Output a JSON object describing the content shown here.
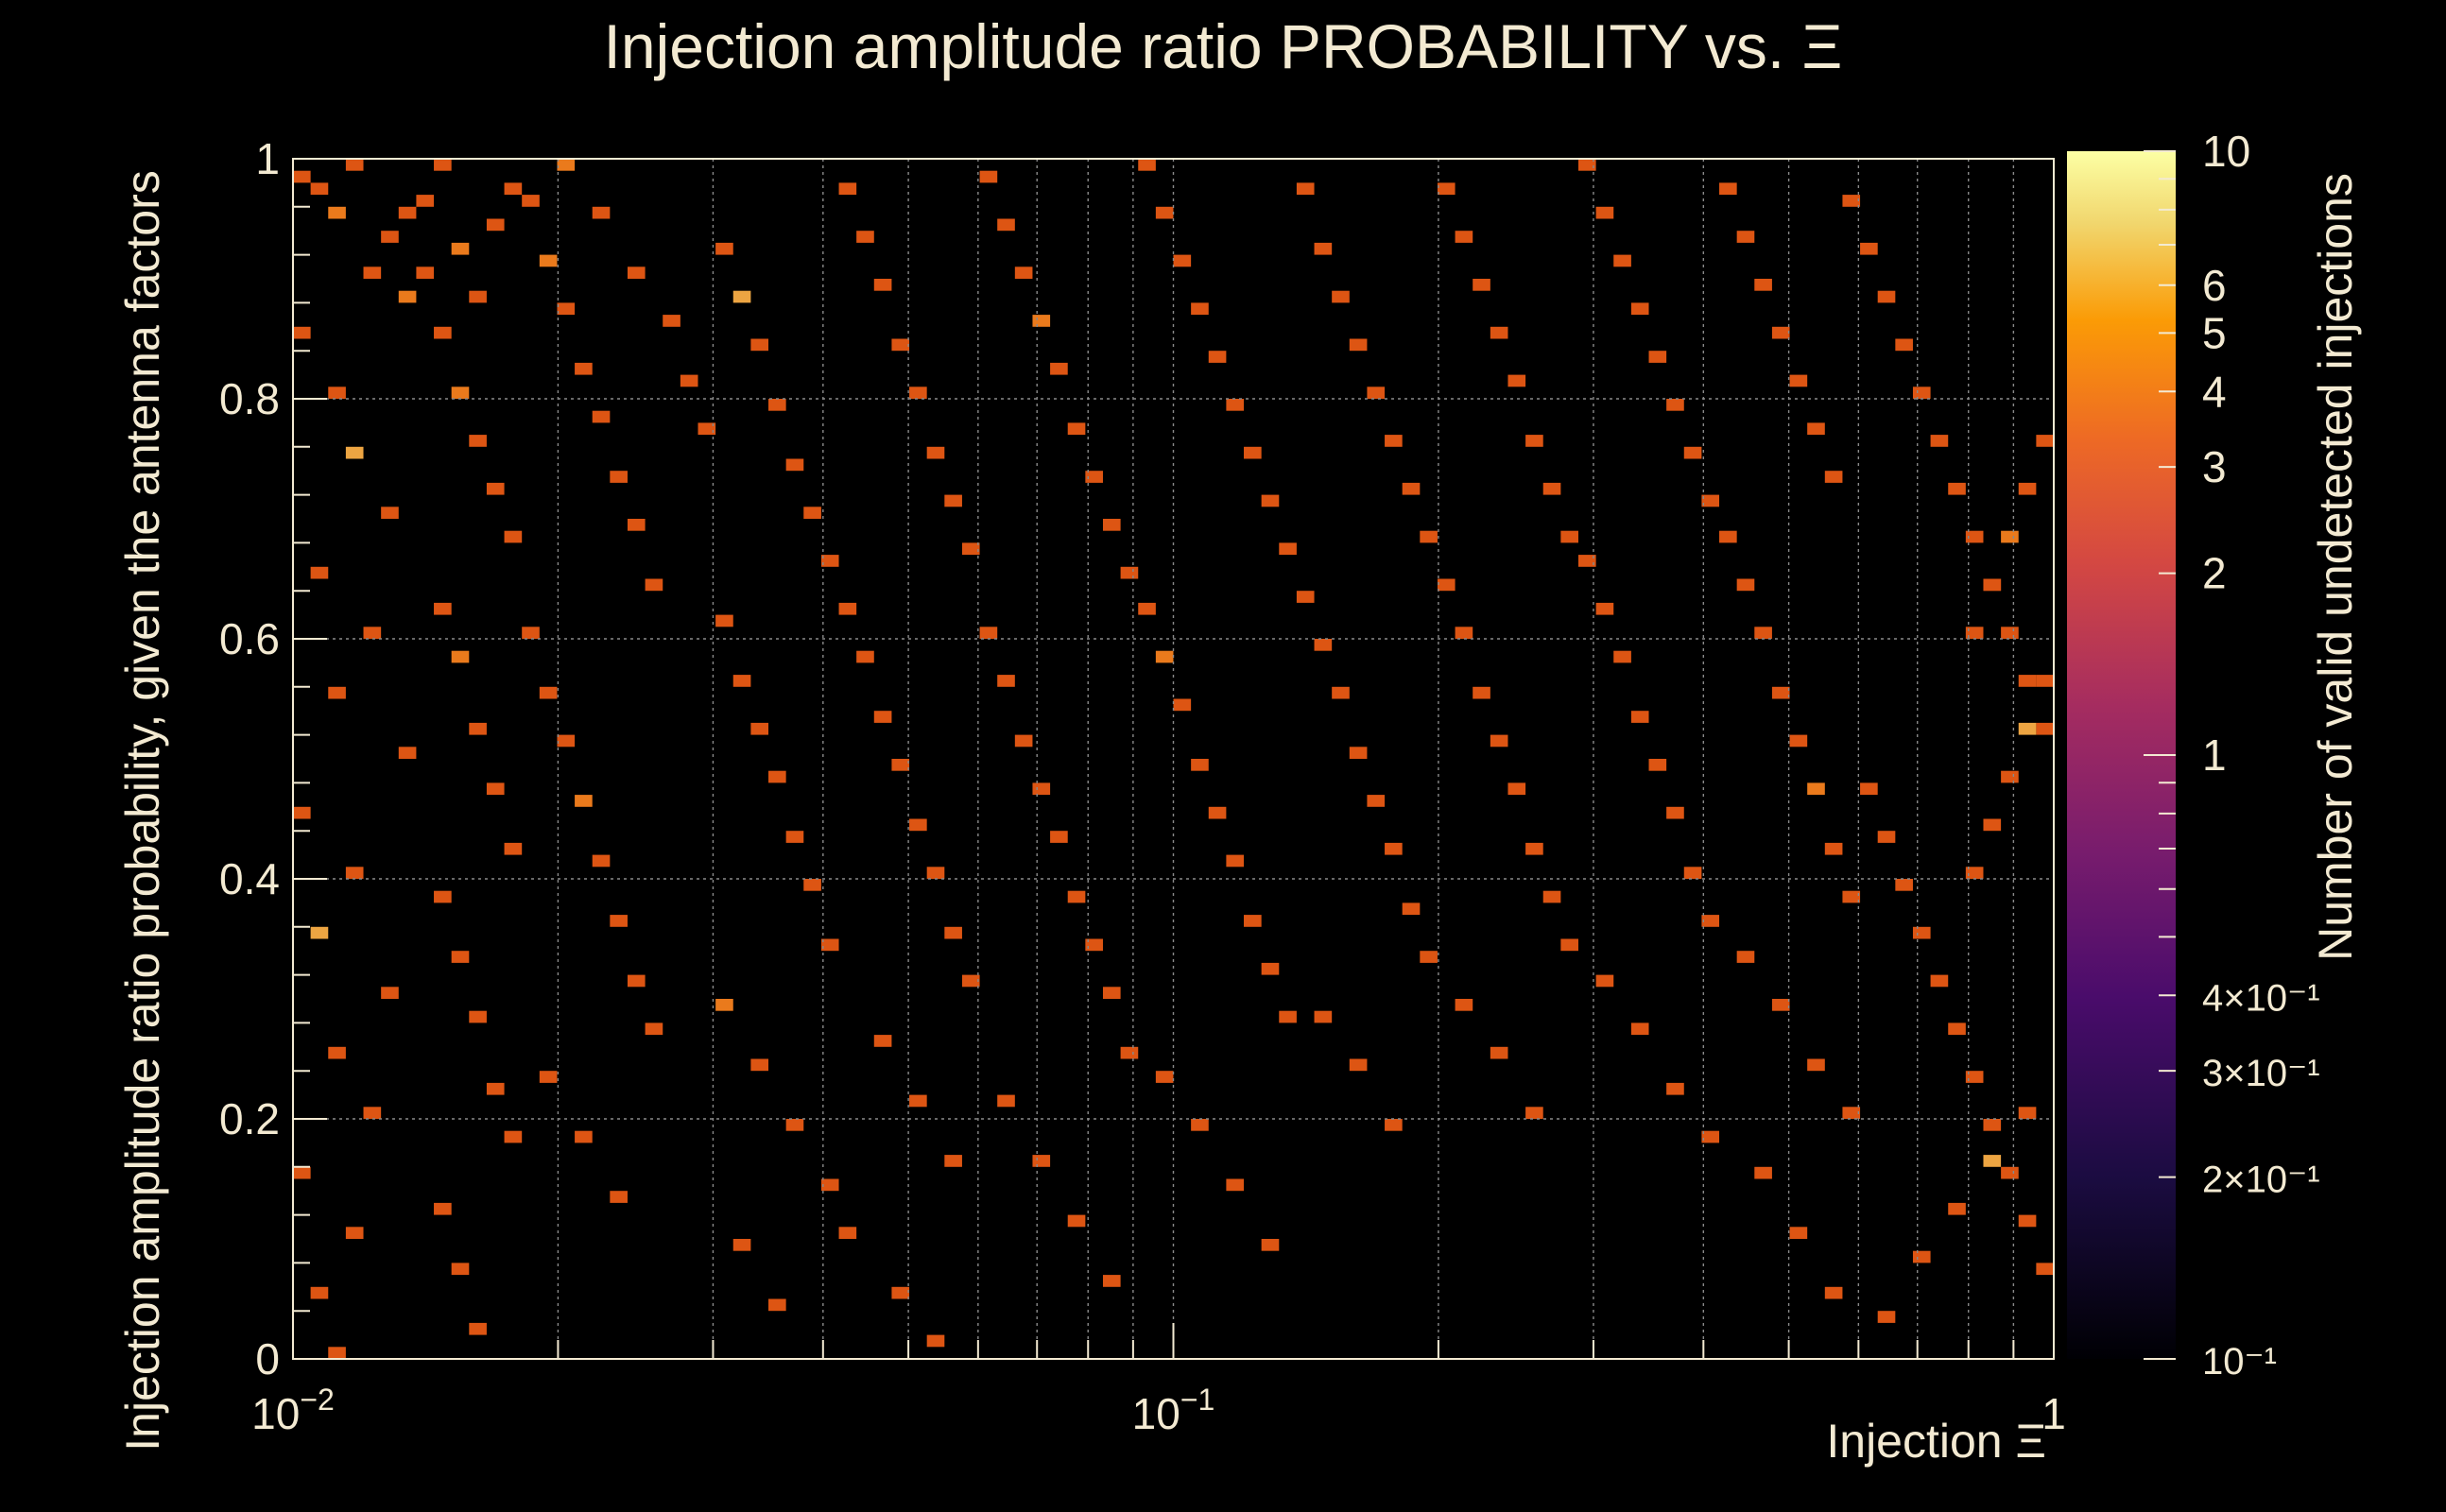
{
  "chart_data": {
    "type": "heatmap",
    "title": "Injection amplitude ratio PROBABILITY vs.  Ξ",
    "xlabel": "Injection Ξ",
    "ylabel": "Injection amplitude ratio probability, given the antenna factors",
    "zlabel": "Number of valid undetected injections",
    "x_scale": "log",
    "xlim": [
      0.01,
      1
    ],
    "ylim": [
      0,
      1
    ],
    "z_scale": "log",
    "zlim": [
      0.1,
      10
    ],
    "grid": true,
    "colormap": "inferno",
    "x_ticks": [
      {
        "value": 0.01,
        "base": "10",
        "exp": "−2"
      },
      {
        "value": 0.1,
        "base": "10",
        "exp": "−1"
      },
      {
        "value": 1,
        "base": "1",
        "exp": ""
      }
    ],
    "y_ticks": [
      {
        "value": 0,
        "label": "0"
      },
      {
        "value": 0.2,
        "label": "0.2"
      },
      {
        "value": 0.4,
        "label": "0.4"
      },
      {
        "value": 0.6,
        "label": "0.6"
      },
      {
        "value": 0.8,
        "label": "0.8"
      },
      {
        "value": 1,
        "label": "1"
      }
    ],
    "z_ticks": [
      {
        "value": 10,
        "label": "10"
      },
      {
        "value": 6,
        "label": "6"
      },
      {
        "value": 5,
        "label": "5"
      },
      {
        "value": 4,
        "label": "4"
      },
      {
        "value": 3,
        "label": "3"
      },
      {
        "value": 2,
        "label": "2"
      },
      {
        "value": 1,
        "label": "1"
      },
      {
        "value": 0.4,
        "label": "4×10⁻¹"
      },
      {
        "value": 0.3,
        "label": "3×10⁻¹"
      },
      {
        "value": 0.2,
        "label": "2×10⁻¹"
      },
      {
        "value": 0.1,
        "label": "10⁻¹"
      }
    ],
    "bins": {
      "nx": 100,
      "ny": 100
    },
    "cell_counts": {
      "1": "dark orange",
      "2": "orange",
      "3": "light orange",
      "4": "yellow-orange"
    },
    "cells": [
      [
        0,
        98,
        1
      ],
      [
        1,
        97,
        1
      ],
      [
        2,
        95,
        2
      ],
      [
        3,
        99,
        1
      ],
      [
        4,
        90,
        1
      ],
      [
        5,
        93,
        1
      ],
      [
        6,
        88,
        2
      ],
      [
        7,
        96,
        1
      ],
      [
        0,
        85,
        1
      ],
      [
        2,
        80,
        1
      ],
      [
        3,
        75,
        3
      ],
      [
        5,
        70,
        1
      ],
      [
        1,
        65,
        1
      ],
      [
        4,
        60,
        1
      ],
      [
        2,
        55,
        1
      ],
      [
        6,
        50,
        1
      ],
      [
        0,
        45,
        1
      ],
      [
        3,
        40,
        1
      ],
      [
        1,
        35,
        3
      ],
      [
        5,
        30,
        1
      ],
      [
        2,
        25,
        1
      ],
      [
        4,
        20,
        1
      ],
      [
        0,
        15,
        1
      ],
      [
        3,
        10,
        1
      ],
      [
        1,
        5,
        1
      ],
      [
        2,
        0,
        1
      ],
      [
        6,
        95,
        1
      ],
      [
        7,
        90,
        1
      ],
      [
        8,
        99,
        1
      ],
      [
        9,
        92,
        2
      ],
      [
        10,
        88,
        1
      ],
      [
        11,
        94,
        1
      ],
      [
        12,
        97,
        1
      ],
      [
        8,
        85,
        1
      ],
      [
        9,
        80,
        2
      ],
      [
        10,
        76,
        1
      ],
      [
        11,
        72,
        1
      ],
      [
        12,
        68,
        1
      ],
      [
        8,
        62,
        1
      ],
      [
        9,
        58,
        2
      ],
      [
        10,
        52,
        1
      ],
      [
        11,
        47,
        1
      ],
      [
        12,
        42,
        1
      ],
      [
        8,
        38,
        1
      ],
      [
        9,
        33,
        1
      ],
      [
        10,
        28,
        1
      ],
      [
        11,
        22,
        1
      ],
      [
        12,
        18,
        1
      ],
      [
        8,
        12,
        1
      ],
      [
        9,
        7,
        1
      ],
      [
        10,
        2,
        1
      ],
      [
        13,
        96,
        1
      ],
      [
        14,
        91,
        2
      ],
      [
        15,
        87,
        1
      ],
      [
        16,
        82,
        1
      ],
      [
        17,
        78,
        1
      ],
      [
        18,
        73,
        1
      ],
      [
        19,
        69,
        1
      ],
      [
        20,
        64,
        1
      ],
      [
        13,
        60,
        1
      ],
      [
        14,
        55,
        1
      ],
      [
        15,
        51,
        1
      ],
      [
        16,
        46,
        2
      ],
      [
        17,
        41,
        1
      ],
      [
        18,
        36,
        1
      ],
      [
        19,
        31,
        1
      ],
      [
        20,
        27,
        1
      ],
      [
        14,
        23,
        1
      ],
      [
        16,
        18,
        1
      ],
      [
        18,
        13,
        1
      ],
      [
        15,
        99,
        2
      ],
      [
        17,
        95,
        1
      ],
      [
        19,
        90,
        1
      ],
      [
        21,
        86,
        1
      ],
      [
        22,
        81,
        1
      ],
      [
        23,
        77,
        1
      ],
      [
        24,
        92,
        1
      ],
      [
        25,
        88,
        3
      ],
      [
        26,
        84,
        1
      ],
      [
        27,
        79,
        1
      ],
      [
        28,
        74,
        1
      ],
      [
        29,
        70,
        1
      ],
      [
        30,
        66,
        1
      ],
      [
        24,
        61,
        1
      ],
      [
        25,
        56,
        1
      ],
      [
        26,
        52,
        1
      ],
      [
        27,
        48,
        1
      ],
      [
        28,
        43,
        1
      ],
      [
        29,
        39,
        1
      ],
      [
        30,
        34,
        1
      ],
      [
        24,
        29,
        2
      ],
      [
        26,
        24,
        1
      ],
      [
        28,
        19,
        1
      ],
      [
        30,
        14,
        1
      ],
      [
        25,
        9,
        1
      ],
      [
        27,
        4,
        1
      ],
      [
        31,
        97,
        1
      ],
      [
        32,
        93,
        1
      ],
      [
        33,
        89,
        1
      ],
      [
        34,
        84,
        1
      ],
      [
        35,
        80,
        1
      ],
      [
        36,
        75,
        1
      ],
      [
        37,
        71,
        1
      ],
      [
        38,
        67,
        1
      ],
      [
        31,
        62,
        1
      ],
      [
        32,
        58,
        1
      ],
      [
        33,
        53,
        1
      ],
      [
        34,
        49,
        1
      ],
      [
        35,
        44,
        1
      ],
      [
        36,
        40,
        1
      ],
      [
        37,
        35,
        1
      ],
      [
        38,
        31,
        1
      ],
      [
        33,
        26,
        1
      ],
      [
        35,
        21,
        1
      ],
      [
        37,
        16,
        1
      ],
      [
        31,
        10,
        1
      ],
      [
        34,
        5,
        1
      ],
      [
        36,
        1,
        1
      ],
      [
        39,
        98,
        1
      ],
      [
        40,
        94,
        1
      ],
      [
        41,
        90,
        1
      ],
      [
        42,
        86,
        2
      ],
      [
        43,
        82,
        1
      ],
      [
        44,
        77,
        1
      ],
      [
        45,
        73,
        1
      ],
      [
        46,
        69,
        1
      ],
      [
        47,
        65,
        1
      ],
      [
        39,
        60,
        1
      ],
      [
        40,
        56,
        1
      ],
      [
        41,
        51,
        1
      ],
      [
        42,
        47,
        1
      ],
      [
        43,
        43,
        1
      ],
      [
        44,
        38,
        1
      ],
      [
        45,
        34,
        1
      ],
      [
        46,
        30,
        1
      ],
      [
        47,
        25,
        1
      ],
      [
        40,
        21,
        1
      ],
      [
        42,
        16,
        1
      ],
      [
        44,
        11,
        1
      ],
      [
        46,
        6,
        1
      ],
      [
        48,
        99,
        1
      ],
      [
        49,
        95,
        1
      ],
      [
        50,
        91,
        1
      ],
      [
        51,
        87,
        1
      ],
      [
        52,
        83,
        1
      ],
      [
        53,
        79,
        1
      ],
      [
        54,
        75,
        1
      ],
      [
        55,
        71,
        1
      ],
      [
        56,
        67,
        1
      ],
      [
        48,
        62,
        1
      ],
      [
        49,
        58,
        2
      ],
      [
        50,
        54,
        1
      ],
      [
        51,
        49,
        1
      ],
      [
        52,
        45,
        1
      ],
      [
        53,
        41,
        1
      ],
      [
        54,
        36,
        1
      ],
      [
        55,
        32,
        1
      ],
      [
        56,
        28,
        1
      ],
      [
        49,
        23,
        1
      ],
      [
        51,
        19,
        1
      ],
      [
        53,
        14,
        1
      ],
      [
        55,
        9,
        1
      ],
      [
        57,
        97,
        1
      ],
      [
        58,
        92,
        1
      ],
      [
        59,
        88,
        1
      ],
      [
        60,
        84,
        1
      ],
      [
        61,
        80,
        1
      ],
      [
        62,
        76,
        1
      ],
      [
        63,
        72,
        1
      ],
      [
        64,
        68,
        1
      ],
      [
        57,
        63,
        1
      ],
      [
        58,
        59,
        1
      ],
      [
        59,
        55,
        1
      ],
      [
        60,
        50,
        1
      ],
      [
        61,
        46,
        1
      ],
      [
        62,
        42,
        1
      ],
      [
        63,
        37,
        1
      ],
      [
        64,
        33,
        1
      ],
      [
        58,
        28,
        1
      ],
      [
        60,
        24,
        1
      ],
      [
        62,
        19,
        1
      ],
      [
        65,
        97,
        1
      ],
      [
        66,
        93,
        1
      ],
      [
        67,
        89,
        1
      ],
      [
        68,
        85,
        1
      ],
      [
        69,
        81,
        1
      ],
      [
        70,
        76,
        1
      ],
      [
        71,
        72,
        1
      ],
      [
        72,
        68,
        1
      ],
      [
        65,
        64,
        1
      ],
      [
        66,
        60,
        1
      ],
      [
        67,
        55,
        1
      ],
      [
        68,
        51,
        1
      ],
      [
        69,
        47,
        1
      ],
      [
        70,
        42,
        1
      ],
      [
        71,
        38,
        1
      ],
      [
        72,
        34,
        1
      ],
      [
        66,
        29,
        1
      ],
      [
        68,
        25,
        1
      ],
      [
        70,
        20,
        1
      ],
      [
        73,
        99,
        1
      ],
      [
        74,
        95,
        1
      ],
      [
        75,
        91,
        1
      ],
      [
        76,
        87,
        1
      ],
      [
        77,
        83,
        1
      ],
      [
        78,
        79,
        1
      ],
      [
        79,
        75,
        1
      ],
      [
        80,
        71,
        1
      ],
      [
        73,
        66,
        1
      ],
      [
        74,
        62,
        1
      ],
      [
        75,
        58,
        1
      ],
      [
        76,
        53,
        1
      ],
      [
        77,
        49,
        1
      ],
      [
        78,
        45,
        1
      ],
      [
        79,
        40,
        1
      ],
      [
        80,
        36,
        1
      ],
      [
        74,
        31,
        1
      ],
      [
        76,
        27,
        1
      ],
      [
        78,
        22,
        1
      ],
      [
        80,
        18,
        1
      ],
      [
        81,
        97,
        1
      ],
      [
        82,
        93,
        1
      ],
      [
        83,
        89,
        1
      ],
      [
        84,
        85,
        1
      ],
      [
        85,
        81,
        1
      ],
      [
        86,
        77,
        1
      ],
      [
        87,
        73,
        1
      ],
      [
        81,
        68,
        1
      ],
      [
        82,
        64,
        1
      ],
      [
        83,
        60,
        1
      ],
      [
        84,
        55,
        1
      ],
      [
        85,
        51,
        1
      ],
      [
        86,
        47,
        2
      ],
      [
        87,
        42,
        1
      ],
      [
        88,
        38,
        1
      ],
      [
        82,
        33,
        1
      ],
      [
        84,
        29,
        1
      ],
      [
        86,
        24,
        1
      ],
      [
        88,
        20,
        1
      ],
      [
        83,
        15,
        1
      ],
      [
        85,
        10,
        1
      ],
      [
        87,
        5,
        1
      ],
      [
        88,
        96,
        1
      ],
      [
        89,
        92,
        1
      ],
      [
        90,
        88,
        1
      ],
      [
        91,
        84,
        1
      ],
      [
        92,
        80,
        1
      ],
      [
        93,
        76,
        1
      ],
      [
        94,
        72,
        1
      ],
      [
        95,
        68,
        1
      ],
      [
        96,
        64,
        1
      ],
      [
        97,
        60,
        1
      ],
      [
        98,
        56,
        1
      ],
      [
        99,
        52,
        1
      ],
      [
        89,
        47,
        1
      ],
      [
        90,
        43,
        1
      ],
      [
        91,
        39,
        1
      ],
      [
        92,
        35,
        1
      ],
      [
        93,
        31,
        1
      ],
      [
        94,
        27,
        1
      ],
      [
        95,
        23,
        1
      ],
      [
        96,
        19,
        1
      ],
      [
        97,
        15,
        1
      ],
      [
        98,
        11,
        1
      ],
      [
        99,
        7,
        1
      ],
      [
        90,
        3,
        1
      ],
      [
        92,
        8,
        1
      ],
      [
        94,
        12,
        1
      ],
      [
        96,
        16,
        3
      ],
      [
        98,
        20,
        1
      ],
      [
        95,
        40,
        1
      ],
      [
        96,
        44,
        1
      ],
      [
        97,
        48,
        1
      ],
      [
        98,
        52,
        3
      ],
      [
        99,
        56,
        1
      ],
      [
        95,
        60,
        1
      ],
      [
        96,
        64,
        1
      ],
      [
        97,
        68,
        2
      ],
      [
        98,
        72,
        1
      ],
      [
        99,
        76,
        1
      ]
    ]
  }
}
